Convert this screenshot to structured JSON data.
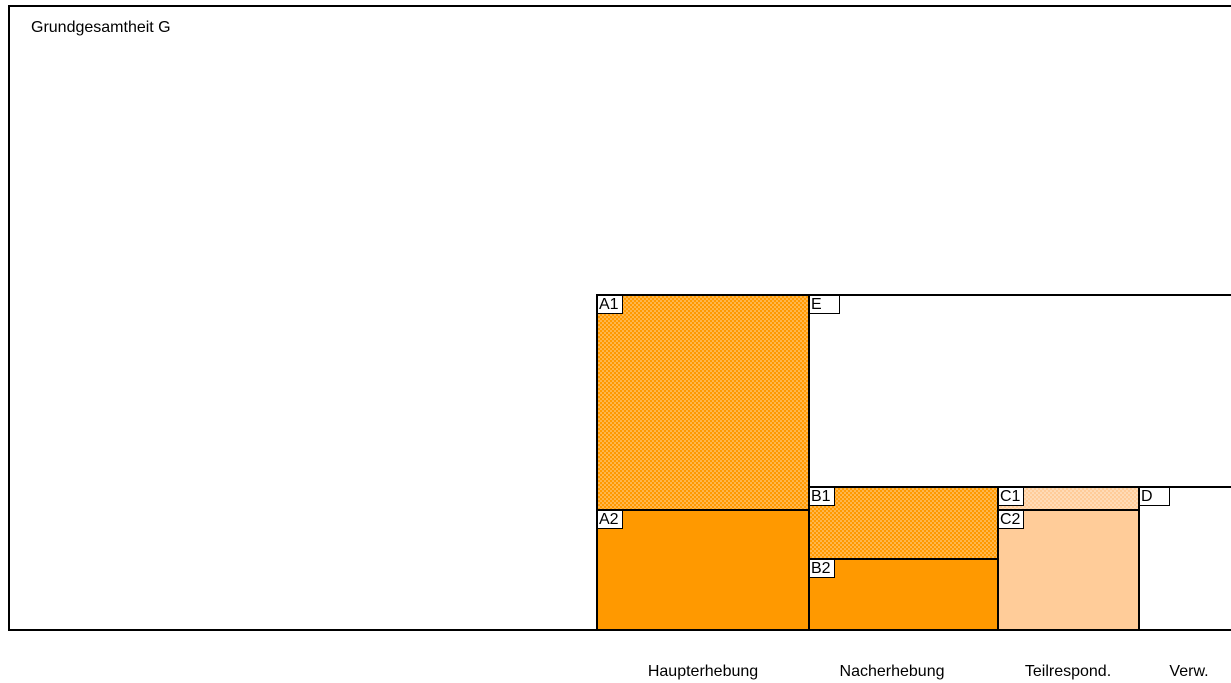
{
  "population": {
    "label": "Grundgesamtheit G"
  },
  "colors": {
    "respondent_solid": "#ff9900",
    "respondent_dotted": "#ff9900",
    "partial_solid": "#ffcc99",
    "partial_dotted": "#ffcc99",
    "outline": "#000000",
    "background": "#ffffff"
  },
  "boxes": {
    "A1": {
      "label": "A1",
      "fill": "dotted-orange"
    },
    "A2": {
      "label": "A2",
      "fill": "solid-orange"
    },
    "B1": {
      "label": "B1",
      "fill": "dotted-orange"
    },
    "B2": {
      "label": "B2",
      "fill": "solid-orange"
    },
    "C1": {
      "label": "C1",
      "fill": "dotted-peach"
    },
    "C2": {
      "label": "C2",
      "fill": "solid-peach"
    },
    "D": {
      "label": "D",
      "fill": "white"
    },
    "E": {
      "label": "E",
      "fill": "white"
    }
  },
  "axis": {
    "haupterhebung": "Haupterhebung",
    "nacherhebung": "Nacherhebung",
    "teilrespond": "Teilrespond.",
    "verw": "Verw."
  }
}
